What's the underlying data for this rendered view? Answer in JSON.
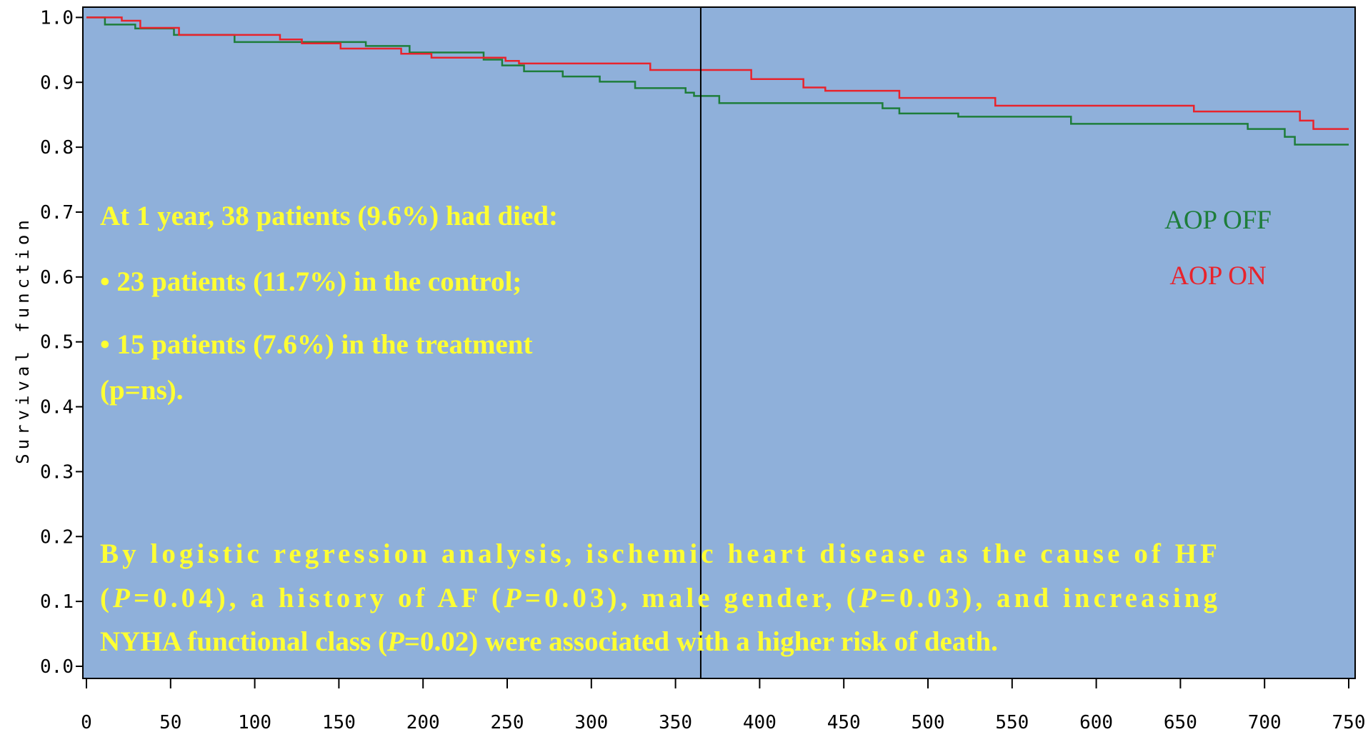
{
  "chart_data": {
    "type": "step",
    "y_label": "Survival function",
    "xlim": [
      0,
      750
    ],
    "ylim": [
      0,
      1
    ],
    "xticks": [
      0,
      50,
      100,
      150,
      200,
      250,
      300,
      350,
      400,
      450,
      500,
      550,
      600,
      650,
      700,
      750
    ],
    "yticks": [
      {
        "value": 0,
        "label": "0.0"
      },
      0.1,
      0.2,
      0.3,
      0.4,
      0.5,
      0.6,
      0.7,
      0.8,
      0.9,
      {
        "value": 1,
        "label": "1.0"
      }
    ],
    "reference_x": 365,
    "background": "#8fb0da",
    "series": [
      {
        "name": "AOP OFF",
        "color": "#1e7d3a",
        "x": [
          0,
          11,
          29,
          52,
          88,
          166,
          192,
          236,
          247,
          260,
          283,
          305,
          326,
          356,
          361,
          376,
          473,
          483,
          518,
          585,
          690,
          712,
          718,
          750
        ],
        "values": [
          1.0,
          0.989,
          0.983,
          0.973,
          0.962,
          0.956,
          0.946,
          0.935,
          0.926,
          0.917,
          0.909,
          0.901,
          0.891,
          0.884,
          0.879,
          0.868,
          0.86,
          0.852,
          0.847,
          0.836,
          0.828,
          0.816,
          0.804,
          0.804
        ]
      },
      {
        "name": "AOP ON",
        "color": "#e8232c",
        "x": [
          0,
          21,
          32,
          55,
          115,
          128,
          151,
          187,
          205,
          249,
          257,
          335,
          395,
          426,
          439,
          483,
          540,
          658,
          721,
          729,
          750
        ],
        "values": [
          1.0,
          0.995,
          0.984,
          0.973,
          0.966,
          0.96,
          0.952,
          0.944,
          0.938,
          0.933,
          0.929,
          0.919,
          0.905,
          0.892,
          0.887,
          0.876,
          0.864,
          0.855,
          0.841,
          0.828,
          0.828
        ]
      }
    ],
    "annotations": [
      {
        "lines": [
          [
            {
              "text": "At 1 year, 38 patients (9.6%)  had died:"
            }
          ],
          [
            {
              "text": "• 23 patients (11.7%) in the control;"
            }
          ],
          [
            {
              "text": "• 15 patients (7.6%) in the treatment"
            }
          ],
          [
            {
              "text": "(p=ns)."
            }
          ]
        ]
      },
      {
        "lines": [
          [
            {
              "text": "By logistic regression analysis, ischemic heart disease as the cause of HF"
            }
          ],
          [
            {
              "text": "("
            },
            {
              "text": "P",
              "italic": true
            },
            {
              "text": "=0.04), a history of AF ("
            },
            {
              "text": "P",
              "italic": true
            },
            {
              "text": "=0.03), male gender, ("
            },
            {
              "text": "P",
              "italic": true
            },
            {
              "text": "=0.03), and increasing"
            }
          ],
          [
            {
              "text": "NYHA functional class ("
            },
            {
              "text": "P",
              "italic": true
            },
            {
              "text": "=0.02) were associated with a higher risk of death."
            }
          ]
        ]
      }
    ]
  }
}
